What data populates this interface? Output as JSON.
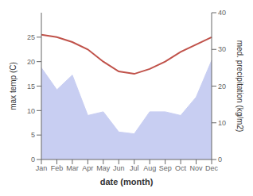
{
  "chart_data": {
    "type": "line",
    "xlabel": "date (month)",
    "ylabel": "max temp (C)",
    "y2label": "med. precipitation (kg/m2)",
    "categories": [
      "Jan",
      "Feb",
      "Mar",
      "Apr",
      "May",
      "Jun",
      "Jul",
      "Aug",
      "Sep",
      "Oct",
      "Nov",
      "Dec"
    ],
    "series": [
      {
        "type": "area",
        "axis": "y2",
        "color": "#c8cef2",
        "values": [
          25.0,
          19.0,
          23.0,
          12.0,
          13.0,
          7.5,
          7.0,
          13.0,
          13.0,
          12.0,
          17.0,
          27.0
        ]
      },
      {
        "type": "line",
        "color": "#c0524a",
        "values": [
          25.5,
          25.0,
          24.0,
          22.5,
          20.0,
          18.0,
          17.5,
          18.5,
          20.0,
          22.0,
          23.5,
          25.0
        ]
      }
    ],
    "ylim": [
      0,
      30
    ],
    "yticks": [
      0,
      5,
      10,
      15,
      20,
      25
    ],
    "y2lim": [
      0,
      40
    ],
    "y2ticks": [
      0,
      10,
      20,
      30,
      40
    ]
  }
}
